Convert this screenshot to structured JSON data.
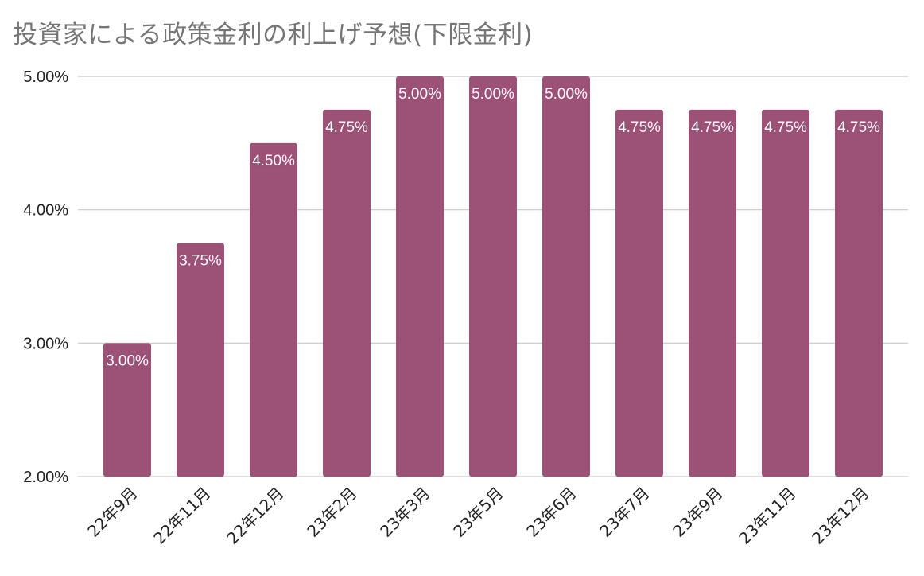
{
  "chart_data": {
    "type": "bar",
    "title": "投資家による政策金利の利上げ予想(下限金利)",
    "xlabel": "",
    "ylabel": "",
    "categories": [
      "22年9月",
      "22年11月",
      "22年12月",
      "23年2月",
      "23年3月",
      "23年5月",
      "23年6月",
      "23年7月",
      "23年9月",
      "23年11月",
      "23年12月"
    ],
    "values": [
      3.0,
      3.75,
      4.5,
      4.75,
      5.0,
      5.0,
      5.0,
      4.75,
      4.75,
      4.75,
      4.75
    ],
    "data_labels": [
      "3.00%",
      "3.75%",
      "4.50%",
      "4.75%",
      "5.00%",
      "5.00%",
      "5.00%",
      "4.75%",
      "4.75%",
      "4.75%",
      "4.75%"
    ],
    "ylim": [
      2.0,
      5.0
    ],
    "yticks": [
      2.0,
      3.0,
      4.0,
      5.0
    ],
    "ytick_labels": [
      "2.00%",
      "3.00%",
      "4.00%",
      "5.00%"
    ],
    "grid": true,
    "legend": "none",
    "colors": {
      "bar": "#9c5276",
      "grid": "#c8c8c8",
      "title": "#757575"
    }
  }
}
